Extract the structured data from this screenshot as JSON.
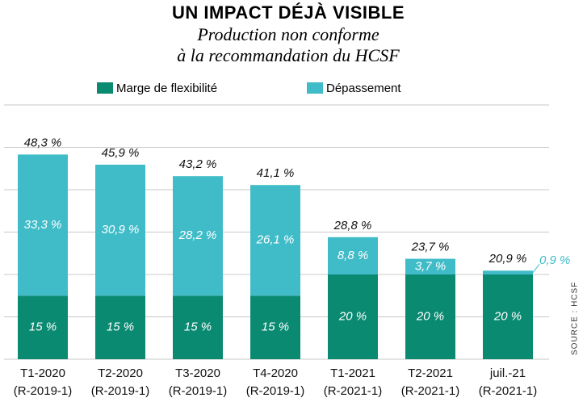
{
  "chart_data": {
    "type": "stacked_bar",
    "title": "UN IMPACT DÉJÀ VISIBLE",
    "subtitle": [
      "Production non conforme",
      "à la recommandation du HCSF"
    ],
    "source": "SOURCE : HCSF",
    "categories": [
      [
        "T1-2020",
        "(R-2019-1)"
      ],
      [
        "T2-2020",
        "(R-2019-1)"
      ],
      [
        "T3-2020",
        "(R-2019-1)"
      ],
      [
        "T4-2020",
        "(R-2019-1)"
      ],
      [
        "T1-2021",
        "(R-2021-1)"
      ],
      [
        "T2-2021",
        "(R-2021-1)"
      ],
      [
        "juil.-21",
        "(R-2021-1)"
      ]
    ],
    "series": [
      {
        "name": "Marge de flexibilité",
        "color": "#0b8a72",
        "values": [
          15,
          15,
          15,
          15,
          20,
          20,
          20
        ],
        "value_labels": [
          "15 %",
          "15 %",
          "15 %",
          "15 %",
          "20 %",
          "20 %",
          "20 %"
        ]
      },
      {
        "name": "Dépassement",
        "color": "#40bcc8",
        "values": [
          33.3,
          30.9,
          28.2,
          26.1,
          8.8,
          3.7,
          0.9
        ],
        "value_labels": [
          "33,3 %",
          "30,9 %",
          "28,2 %",
          "26,1 %",
          "8,8 %",
          "3,7 %",
          "0,9 %"
        ]
      }
    ],
    "totals": [
      48.3,
      45.9,
      43.2,
      41.1,
      28.8,
      23.7,
      20.9
    ],
    "total_labels": [
      "48,3 %",
      "45,9 %",
      "43,2 %",
      "41,1 %",
      "28,8 %",
      "23,7 %",
      "20,9 %"
    ],
    "ylim": [
      0,
      60
    ],
    "yticks": [
      0,
      10,
      20,
      30,
      40,
      50,
      60
    ],
    "grid": true
  }
}
